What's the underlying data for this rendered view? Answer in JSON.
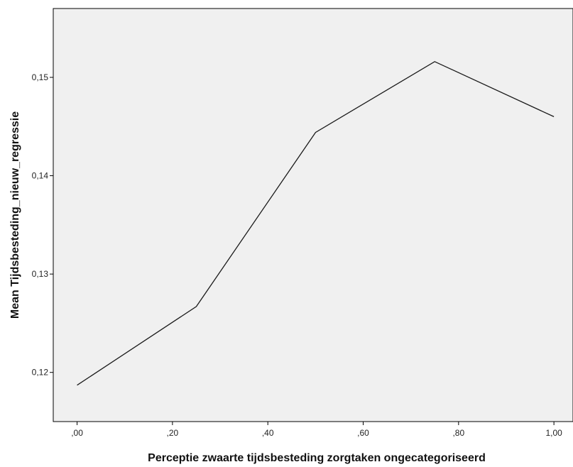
{
  "chart_data": {
    "type": "line",
    "title": "",
    "xlabel": "Perceptie zwaarte tijdsbesteding zorgtaken ongecategoriseerd",
    "ylabel": "Mean Tijdsbesteding_nieuw_regressie",
    "x": [
      0.0,
      0.25,
      0.5,
      0.75,
      1.0
    ],
    "series": [
      {
        "values": [
          0.1187,
          0.1267,
          0.1444,
          0.1516,
          0.146
        ]
      }
    ],
    "xlim": [
      -0.05,
      1.04
    ],
    "ylim": [
      0.115,
      0.157
    ],
    "xticks": [
      {
        "value": 0.0,
        "label": ",00"
      },
      {
        "value": 0.2,
        "label": ",20"
      },
      {
        "value": 0.4,
        "label": ",40"
      },
      {
        "value": 0.6,
        "label": ",60"
      },
      {
        "value": 0.8,
        "label": ",80"
      },
      {
        "value": 1.0,
        "label": "1,00"
      }
    ],
    "yticks": [
      {
        "value": 0.12,
        "label": "0,12"
      },
      {
        "value": 0.13,
        "label": "0,13"
      },
      {
        "value": 0.14,
        "label": "0,14"
      },
      {
        "value": 0.15,
        "label": "0,15"
      }
    ],
    "grid": false,
    "colors": {
      "plot_background": "#f0f0f0",
      "line": "#1a1a1a",
      "frame": "#000000"
    }
  }
}
